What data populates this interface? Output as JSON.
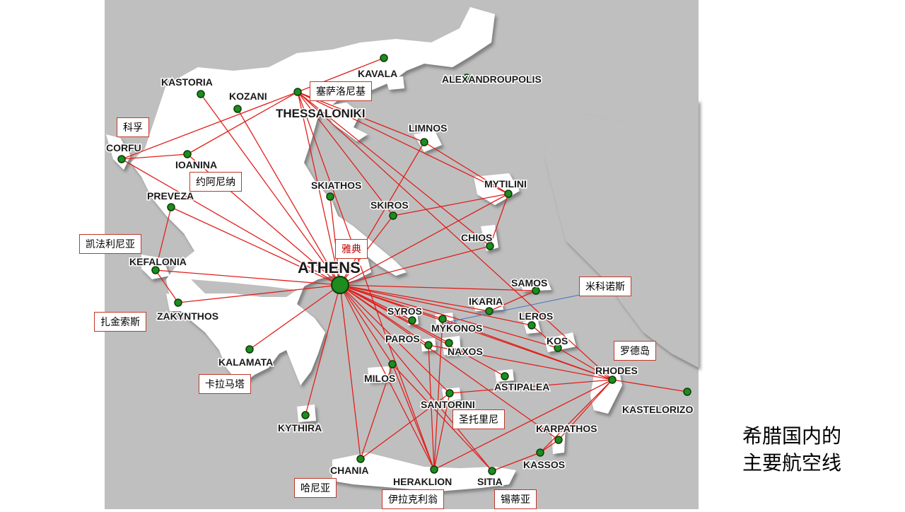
{
  "slide": {
    "title_line1": "希腊国内的",
    "title_line2": "主要航空线"
  },
  "map": {
    "route_color": "#e0201c",
    "airport_color": "#1e8c1e",
    "cities": [
      {
        "id": "athens",
        "label": "ATHENS"
      },
      {
        "id": "thessaloniki",
        "label": "THESSALONIKI"
      },
      {
        "id": "kastoria",
        "label": "KASTORIA"
      },
      {
        "id": "kozani",
        "label": "KOZANI"
      },
      {
        "id": "kavala",
        "label": "KAVALA"
      },
      {
        "id": "alexandroupolis",
        "label": "ALEXANDROUPOLIS"
      },
      {
        "id": "limnos",
        "label": "LIMNOS"
      },
      {
        "id": "corfu",
        "label": "CORFU"
      },
      {
        "id": "ioanina",
        "label": "IOANINA"
      },
      {
        "id": "preveza",
        "label": "PREVEZA"
      },
      {
        "id": "skiathos",
        "label": "SKIATHOS"
      },
      {
        "id": "skiros",
        "label": "SKIROS"
      },
      {
        "id": "mytilini",
        "label": "MYTILINI"
      },
      {
        "id": "chios",
        "label": "CHIOS"
      },
      {
        "id": "kefalonia",
        "label": "KEFALONIA"
      },
      {
        "id": "samos",
        "label": "SAMOS"
      },
      {
        "id": "ikaria",
        "label": "IKARIA"
      },
      {
        "id": "syros",
        "label": "SYROS"
      },
      {
        "id": "leros",
        "label": "LEROS"
      },
      {
        "id": "zakynthos",
        "label": "ZAKYNTHOS"
      },
      {
        "id": "mykonos",
        "label": "MYKONOS"
      },
      {
        "id": "paros",
        "label": "PAROS"
      },
      {
        "id": "kos",
        "label": "KOS"
      },
      {
        "id": "naxos",
        "label": "NAXOS"
      },
      {
        "id": "kalamata",
        "label": "KALAMATA"
      },
      {
        "id": "rhodes",
        "label": "RHODES"
      },
      {
        "id": "milos",
        "label": "MILOS"
      },
      {
        "id": "astipalea",
        "label": "ASTIPALEA"
      },
      {
        "id": "santorini",
        "label": "SANTORINI"
      },
      {
        "id": "kastelorizo",
        "label": "KASTELORIZO"
      },
      {
        "id": "kythira",
        "label": "KYTHIRA"
      },
      {
        "id": "karpathos",
        "label": "KARPATHOS"
      },
      {
        "id": "kassos",
        "label": "KASSOS"
      },
      {
        "id": "chania",
        "label": "CHANIA"
      },
      {
        "id": "heraklion",
        "label": "HERAKLION"
      },
      {
        "id": "sitia",
        "label": "SITIA"
      }
    ],
    "routes": [
      [
        "athens",
        "thessaloniki"
      ],
      [
        "athens",
        "kastoria"
      ],
      [
        "athens",
        "kozani"
      ],
      [
        "athens",
        "corfu"
      ],
      [
        "athens",
        "ioanina"
      ],
      [
        "athens",
        "preveza"
      ],
      [
        "athens",
        "kefalonia"
      ],
      [
        "athens",
        "zakynthos"
      ],
      [
        "athens",
        "kalamata"
      ],
      [
        "athens",
        "kythira"
      ],
      [
        "athens",
        "chania"
      ],
      [
        "athens",
        "heraklion"
      ],
      [
        "athens",
        "sitia"
      ],
      [
        "athens",
        "milos"
      ],
      [
        "athens",
        "santorini"
      ],
      [
        "athens",
        "paros"
      ],
      [
        "athens",
        "naxos"
      ],
      [
        "athens",
        "mykonos"
      ],
      [
        "athens",
        "syros"
      ],
      [
        "athens",
        "ikaria"
      ],
      [
        "athens",
        "samos"
      ],
      [
        "athens",
        "chios"
      ],
      [
        "athens",
        "mytilini"
      ],
      [
        "athens",
        "limnos"
      ],
      [
        "athens",
        "skiathos"
      ],
      [
        "athens",
        "skiros"
      ],
      [
        "athens",
        "rhodes"
      ],
      [
        "athens",
        "kos"
      ],
      [
        "athens",
        "leros"
      ],
      [
        "athens",
        "astipalea"
      ],
      [
        "athens",
        "karpathos"
      ],
      [
        "thessaloniki",
        "corfu"
      ],
      [
        "thessaloniki",
        "kavala"
      ],
      [
        "thessaloniki",
        "limnos"
      ],
      [
        "thessaloniki",
        "mytilini"
      ],
      [
        "thessaloniki",
        "skiros"
      ],
      [
        "thessaloniki",
        "rhodes"
      ],
      [
        "thessaloniki",
        "heraklion"
      ],
      [
        "thessaloniki",
        "chios"
      ],
      [
        "thessaloniki",
        "ioanina"
      ],
      [
        "limnos",
        "mytilini"
      ],
      [
        "mytilini",
        "chios"
      ],
      [
        "mytilini",
        "skiros"
      ],
      [
        "rhodes",
        "kastelorizo"
      ],
      [
        "rhodes",
        "kos"
      ],
      [
        "rhodes",
        "karpathos"
      ],
      [
        "rhodes",
        "kassos"
      ],
      [
        "rhodes",
        "heraklion"
      ],
      [
        "rhodes",
        "santorini"
      ],
      [
        "rhodes",
        "paros"
      ],
      [
        "rhodes",
        "mykonos"
      ],
      [
        "karpathos",
        "kassos"
      ],
      [
        "kassos",
        "sitia"
      ],
      [
        "heraklion",
        "santorini"
      ],
      [
        "heraklion",
        "milos"
      ],
      [
        "heraklion",
        "paros"
      ],
      [
        "heraklion",
        "mykonos"
      ],
      [
        "chania",
        "santorini"
      ],
      [
        "sitia",
        "milos"
      ],
      [
        "corfu",
        "ioanina"
      ],
      [
        "preveza",
        "kefalonia"
      ],
      [
        "kefalonia",
        "zakynthos"
      ],
      [
        "samos",
        "ikaria"
      ],
      [
        "leros",
        "kos"
      ],
      [
        "chania",
        "milos"
      ]
    ],
    "callouts": [
      {
        "id": "thessaloniki",
        "text": "塞萨洛尼基"
      },
      {
        "id": "corfu",
        "text": "科孚"
      },
      {
        "id": "ioanina",
        "text": "约阿尼纳"
      },
      {
        "id": "kefalonia",
        "text": "凯法利尼亚"
      },
      {
        "id": "athens",
        "text": "雅典"
      },
      {
        "id": "mykonos",
        "text": "米科诺斯"
      },
      {
        "id": "zakynthos",
        "text": "扎金索斯"
      },
      {
        "id": "rhodes",
        "text": "罗德岛"
      },
      {
        "id": "kalamata",
        "text": "卡拉马塔"
      },
      {
        "id": "santorini",
        "text": "圣托里尼"
      },
      {
        "id": "chania",
        "text": "哈尼亚"
      },
      {
        "id": "heraklion",
        "text": "伊拉克利翁"
      },
      {
        "id": "sitia",
        "text": "锡蒂亚"
      }
    ]
  }
}
